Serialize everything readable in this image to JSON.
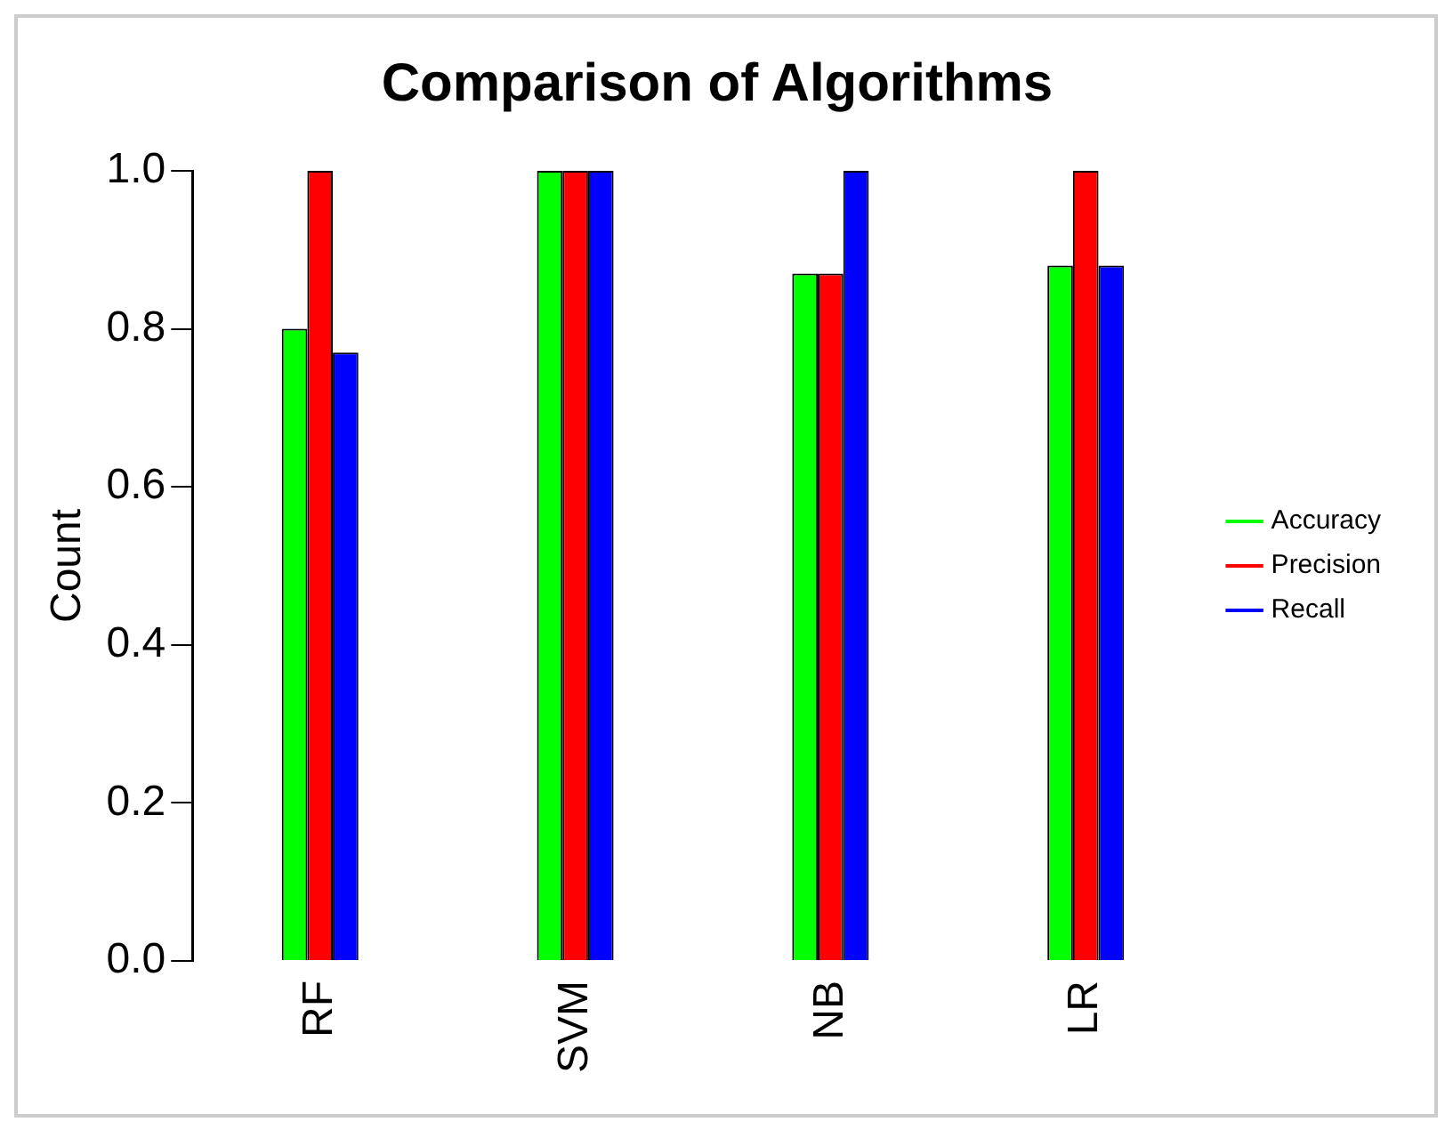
{
  "chart_data": {
    "type": "bar",
    "title": "Comparison of Algorithms",
    "ylabel": "Count",
    "categories": [
      "RF",
      "SVM",
      "NB",
      "LR"
    ],
    "series": [
      {
        "name": "Accuracy",
        "color": "#00ff00",
        "values": [
          0.8,
          1.0,
          0.87,
          0.88
        ]
      },
      {
        "name": "Precision",
        "color": "#ff0000",
        "values": [
          1.0,
          1.0,
          0.87,
          1.0
        ]
      },
      {
        "name": "Recall",
        "color": "#0000ff",
        "values": [
          0.77,
          1.0,
          1.0,
          0.88
        ]
      }
    ],
    "ylim": [
      0,
      1
    ],
    "yticks": [
      {
        "value": 0,
        "label": "0.0"
      },
      {
        "value": 0.2,
        "label": "0.2"
      },
      {
        "value": 0.4,
        "label": "0.4"
      },
      {
        "value": 0.6,
        "label": "0.6"
      },
      {
        "value": 0.8,
        "label": "0.8"
      },
      {
        "value": 1,
        "label": "1.0"
      }
    ],
    "grid": false,
    "legend": "right"
  }
}
